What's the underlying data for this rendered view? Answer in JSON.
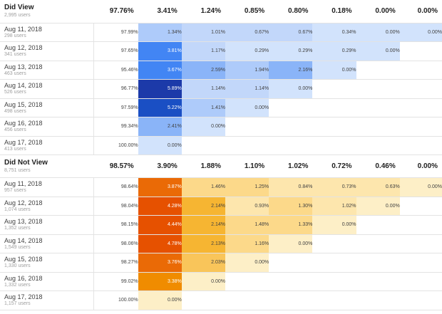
{
  "segments": [
    {
      "name": "Did View",
      "users": "2,995 users",
      "totals": [
        "97.76%",
        "3.41%",
        "1.24%",
        "0.85%",
        "0.80%",
        "0.18%",
        "0.00%",
        "0.00%"
      ],
      "palette": "blue",
      "rows": [
        {
          "date": "Aug 11, 2018",
          "users": "298 users",
          "values": [
            "97.99%",
            "1.34%",
            "1.01%",
            "0.67%",
            "0.67%",
            "0.34%",
            "0.00%",
            "0.00%"
          ]
        },
        {
          "date": "Aug 12, 2018",
          "users": "341 users",
          "values": [
            "97.65%",
            "3.81%",
            "1.17%",
            "0.29%",
            "0.29%",
            "0.29%",
            "0.00%"
          ]
        },
        {
          "date": "Aug 13, 2018",
          "users": "463 users",
          "values": [
            "95.46%",
            "3.67%",
            "2.59%",
            "1.94%",
            "2.16%",
            "0.00%"
          ]
        },
        {
          "date": "Aug 14, 2018",
          "users": "526 users",
          "values": [
            "96.77%",
            "5.89%",
            "1.14%",
            "1.14%",
            "0.00%"
          ]
        },
        {
          "date": "Aug 15, 2018",
          "users": "498 users",
          "values": [
            "97.59%",
            "5.22%",
            "1.41%",
            "0.00%"
          ]
        },
        {
          "date": "Aug 16, 2018",
          "users": "456 users",
          "values": [
            "99.34%",
            "2.41%",
            "0.00%"
          ]
        },
        {
          "date": "Aug 17, 2018",
          "users": "413 users",
          "values": [
            "100.00%",
            "0.00%"
          ]
        }
      ]
    },
    {
      "name": "Did Not View",
      "users": "8,751 users",
      "totals": [
        "98.57%",
        "3.90%",
        "1.88%",
        "1.10%",
        "1.02%",
        "0.72%",
        "0.46%",
        "0.00%"
      ],
      "palette": "orange",
      "rows": [
        {
          "date": "Aug 11, 2018",
          "users": "957 users",
          "values": [
            "98.64%",
            "3.87%",
            "1.46%",
            "1.25%",
            "0.84%",
            "0.73%",
            "0.63%",
            "0.00%"
          ]
        },
        {
          "date": "Aug 12, 2018",
          "users": "1,074 users",
          "values": [
            "98.04%",
            "4.28%",
            "2.14%",
            "0.93%",
            "1.30%",
            "1.02%",
            "0.00%"
          ]
        },
        {
          "date": "Aug 13, 2018",
          "users": "1,352 users",
          "values": [
            "98.15%",
            "4.44%",
            "2.14%",
            "1.48%",
            "1.33%",
            "0.00%"
          ]
        },
        {
          "date": "Aug 14, 2018",
          "users": "1,549 users",
          "values": [
            "98.06%",
            "4.78%",
            "2.13%",
            "1.16%",
            "0.00%"
          ]
        },
        {
          "date": "Aug 15, 2018",
          "users": "1,330 users",
          "values": [
            "98.27%",
            "3.76%",
            "2.03%",
            "0.00%"
          ]
        },
        {
          "date": "Aug 16, 2018",
          "users": "1,332 users",
          "values": [
            "99.02%",
            "3.38%",
            "0.00%"
          ]
        },
        {
          "date": "Aug 17, 2018",
          "users": "1,157 users",
          "values": [
            "100.00%",
            "0.00%"
          ]
        }
      ]
    }
  ]
}
